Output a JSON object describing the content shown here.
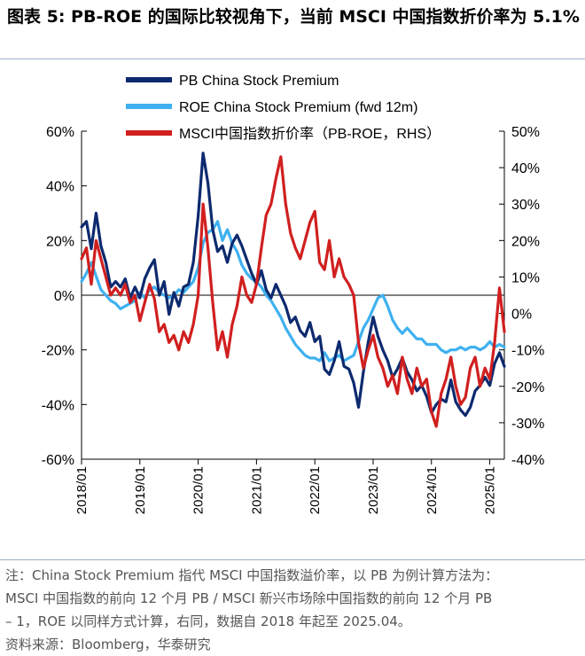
{
  "header": {
    "title": "图表 5:  PB-ROE 的国际比较视角下，当前 MSCI 中国指数折价率为 5.1%"
  },
  "footer": {
    "note_line1": "注：China Stock Premium 指代 MSCI 中国指数溢价率，以 PB 为例计算方法为：",
    "note_line2": "MSCI 中国指数的前向 12 个月 PB / MSCI 新兴市场除中国指数的前向 12 个月 PB",
    "note_line3": "– 1，ROE 以同样方式计算，右同，数据自 2018 年起至 2025.04。",
    "source": "资料来源：Bloomberg，华泰研究"
  },
  "colors": {
    "pb": "#0d2a6e",
    "roe": "#3fb1f0",
    "msci": "#d11f1f"
  },
  "chart_data": {
    "type": "line",
    "x_ticks": [
      "2018/01",
      "2019/01",
      "2020/01",
      "2021/01",
      "2022/01",
      "2023/01",
      "2024/01",
      "2025/01"
    ],
    "xlim": [
      "2018/01",
      "2025/04"
    ],
    "y_left": {
      "ylim": [
        -60,
        60
      ],
      "ticks": [
        "60%",
        "40%",
        "20%",
        "0%",
        "-20%",
        "-40%",
        "-60%"
      ]
    },
    "y_right": {
      "ylim": [
        -40,
        50
      ],
      "ticks": [
        "50%",
        "40%",
        "30%",
        "20%",
        "10%",
        "0%",
        "-10%",
        "-20%",
        "-30%",
        "-40%"
      ]
    },
    "legend": [
      "PB China Stock Premium",
      "ROE China Stock Premium (fwd 12m)",
      "MSCI中国指数折价率（PB-ROE，RHS）"
    ],
    "legend_placement": "top-center",
    "series": [
      {
        "name": "PB China Stock Premium",
        "axis": "left",
        "points": [
          [
            "2018/01",
            25
          ],
          [
            "2018/02",
            27
          ],
          [
            "2018/03",
            17
          ],
          [
            "2018/04",
            30
          ],
          [
            "2018/05",
            18
          ],
          [
            "2018/06",
            12
          ],
          [
            "2018/07",
            3
          ],
          [
            "2018/08",
            5
          ],
          [
            "2018/09",
            3
          ],
          [
            "2018/10",
            6
          ],
          [
            "2018/11",
            -1
          ],
          [
            "2018/12",
            3
          ],
          [
            "2019/01",
            -1
          ],
          [
            "2019/02",
            6
          ],
          [
            "2019/03",
            10
          ],
          [
            "2019/04",
            13
          ],
          [
            "2019/05",
            0
          ],
          [
            "2019/06",
            5
          ],
          [
            "2019/07",
            -7
          ],
          [
            "2019/08",
            1
          ],
          [
            "2019/09",
            -4
          ],
          [
            "2019/10",
            3
          ],
          [
            "2019/11",
            4
          ],
          [
            "2019/12",
            12
          ],
          [
            "2020/01",
            29
          ],
          [
            "2020/02",
            52
          ],
          [
            "2020/03",
            41
          ],
          [
            "2020/04",
            24
          ],
          [
            "2020/05",
            16
          ],
          [
            "2020/06",
            18
          ],
          [
            "2020/07",
            12
          ],
          [
            "2020/08",
            19
          ],
          [
            "2020/09",
            22
          ],
          [
            "2020/10",
            18
          ],
          [
            "2020/11",
            13
          ],
          [
            "2020/12",
            8
          ],
          [
            "2021/01",
            4
          ],
          [
            "2021/02",
            9
          ],
          [
            "2021/03",
            2
          ],
          [
            "2021/04",
            -1
          ],
          [
            "2021/05",
            4
          ],
          [
            "2021/06",
            0
          ],
          [
            "2021/07",
            -4
          ],
          [
            "2021/08",
            -10
          ],
          [
            "2021/09",
            -8
          ],
          [
            "2021/10",
            -13
          ],
          [
            "2021/11",
            -15
          ],
          [
            "2021/12",
            -10
          ],
          [
            "2022/01",
            -17
          ],
          [
            "2022/02",
            -15
          ],
          [
            "2022/03",
            -27
          ],
          [
            "2022/04",
            -29
          ],
          [
            "2022/05",
            -24
          ],
          [
            "2022/06",
            -17
          ],
          [
            "2022/07",
            -26
          ],
          [
            "2022/08",
            -27
          ],
          [
            "2022/09",
            -32
          ],
          [
            "2022/10",
            -41
          ],
          [
            "2022/11",
            -28
          ],
          [
            "2022/12",
            -17
          ],
          [
            "2023/01",
            -8
          ],
          [
            "2023/02",
            -15
          ],
          [
            "2023/03",
            -20
          ],
          [
            "2023/04",
            -24
          ],
          [
            "2023/05",
            -30
          ],
          [
            "2023/06",
            -27
          ],
          [
            "2023/07",
            -23
          ],
          [
            "2023/08",
            -28
          ],
          [
            "2023/09",
            -31
          ],
          [
            "2023/10",
            -35
          ],
          [
            "2023/11",
            -33
          ],
          [
            "2023/12",
            -37
          ],
          [
            "2024/01",
            -43
          ],
          [
            "2024/02",
            -40
          ],
          [
            "2024/03",
            -38
          ],
          [
            "2024/04",
            -39
          ],
          [
            "2024/05",
            -31
          ],
          [
            "2024/06",
            -39
          ],
          [
            "2024/07",
            -42
          ],
          [
            "2024/08",
            -44
          ],
          [
            "2024/09",
            -41
          ],
          [
            "2024/10",
            -35
          ],
          [
            "2024/11",
            -33
          ],
          [
            "2024/12",
            -30
          ],
          [
            "2025/01",
            -33
          ],
          [
            "2025/02",
            -25
          ],
          [
            "2025/03",
            -21
          ],
          [
            "2025/04",
            -26
          ]
        ]
      },
      {
        "name": "ROE China Stock Premium (fwd 12m)",
        "axis": "left",
        "points": [
          [
            "2018/01",
            5
          ],
          [
            "2018/02",
            8
          ],
          [
            "2018/03",
            12
          ],
          [
            "2018/04",
            7
          ],
          [
            "2018/05",
            2
          ],
          [
            "2018/06",
            0
          ],
          [
            "2018/07",
            -2
          ],
          [
            "2018/08",
            -3
          ],
          [
            "2018/09",
            -5
          ],
          [
            "2018/10",
            -4
          ],
          [
            "2018/11",
            -3
          ],
          [
            "2018/12",
            -2
          ],
          [
            "2019/01",
            1
          ],
          [
            "2019/02",
            -1
          ],
          [
            "2019/03",
            2
          ],
          [
            "2019/04",
            3
          ],
          [
            "2019/05",
            1
          ],
          [
            "2019/06",
            0
          ],
          [
            "2019/07",
            -1
          ],
          [
            "2019/08",
            0
          ],
          [
            "2019/09",
            2
          ],
          [
            "2019/10",
            1
          ],
          [
            "2019/11",
            3
          ],
          [
            "2019/12",
            5
          ],
          [
            "2020/01",
            10
          ],
          [
            "2020/02",
            19
          ],
          [
            "2020/03",
            23
          ],
          [
            "2020/04",
            24
          ],
          [
            "2020/05",
            27
          ],
          [
            "2020/06",
            20
          ],
          [
            "2020/07",
            24
          ],
          [
            "2020/08",
            19
          ],
          [
            "2020/09",
            16
          ],
          [
            "2020/10",
            11
          ],
          [
            "2020/11",
            8
          ],
          [
            "2020/12",
            6
          ],
          [
            "2021/01",
            5
          ],
          [
            "2021/02",
            3
          ],
          [
            "2021/03",
            0
          ],
          [
            "2021/04",
            -2
          ],
          [
            "2021/05",
            -5
          ],
          [
            "2021/06",
            -8
          ],
          [
            "2021/07",
            -12
          ],
          [
            "2021/08",
            -15
          ],
          [
            "2021/09",
            -18
          ],
          [
            "2021/10",
            -20
          ],
          [
            "2021/11",
            -22
          ],
          [
            "2021/12",
            -23
          ],
          [
            "2022/01",
            -23
          ],
          [
            "2022/02",
            -24
          ],
          [
            "2022/03",
            -21
          ],
          [
            "2022/04",
            -24
          ],
          [
            "2022/05",
            -23
          ],
          [
            "2022/06",
            -22
          ],
          [
            "2022/07",
            -24
          ],
          [
            "2022/08",
            -23
          ],
          [
            "2022/09",
            -22
          ],
          [
            "2022/10",
            -17
          ],
          [
            "2022/11",
            -12
          ],
          [
            "2022/12",
            -9
          ],
          [
            "2023/01",
            -5
          ],
          [
            "2023/02",
            -1
          ],
          [
            "2023/03",
            0
          ],
          [
            "2023/04",
            -4
          ],
          [
            "2023/05",
            -9
          ],
          [
            "2023/06",
            -12
          ],
          [
            "2023/07",
            -14
          ],
          [
            "2023/08",
            -12
          ],
          [
            "2023/09",
            -14
          ],
          [
            "2023/10",
            -16
          ],
          [
            "2023/11",
            -16
          ],
          [
            "2023/12",
            -18
          ],
          [
            "2024/01",
            -18
          ],
          [
            "2024/02",
            -18
          ],
          [
            "2024/03",
            -20
          ],
          [
            "2024/04",
            -21
          ],
          [
            "2024/05",
            -20
          ],
          [
            "2024/06",
            -20
          ],
          [
            "2024/07",
            -19
          ],
          [
            "2024/08",
            -20
          ],
          [
            "2024/09",
            -19
          ],
          [
            "2024/10",
            -19
          ],
          [
            "2024/11",
            -20
          ],
          [
            "2024/12",
            -19
          ],
          [
            "2025/01",
            -17
          ],
          [
            "2025/02",
            -19
          ],
          [
            "2025/03",
            -18
          ],
          [
            "2025/04",
            -19
          ]
        ]
      },
      {
        "name": "MSCI中国指数折价率（PB-ROE，RHS）",
        "axis": "right",
        "points": [
          [
            "2018/01",
            15
          ],
          [
            "2018/02",
            18
          ],
          [
            "2018/03",
            8
          ],
          [
            "2018/04",
            20
          ],
          [
            "2018/05",
            15
          ],
          [
            "2018/06",
            10
          ],
          [
            "2018/07",
            5
          ],
          [
            "2018/08",
            7
          ],
          [
            "2018/09",
            5
          ],
          [
            "2018/10",
            8
          ],
          [
            "2018/11",
            3
          ],
          [
            "2018/12",
            5
          ],
          [
            "2019/01",
            -2
          ],
          [
            "2019/02",
            3
          ],
          [
            "2019/03",
            8
          ],
          [
            "2019/04",
            4
          ],
          [
            "2019/05",
            -5
          ],
          [
            "2019/06",
            -3
          ],
          [
            "2019/07",
            -8
          ],
          [
            "2019/08",
            -6
          ],
          [
            "2019/09",
            -10
          ],
          [
            "2019/10",
            -5
          ],
          [
            "2019/11",
            -8
          ],
          [
            "2019/12",
            -3
          ],
          [
            "2020/01",
            5
          ],
          [
            "2020/02",
            30
          ],
          [
            "2020/03",
            18
          ],
          [
            "2020/04",
            3
          ],
          [
            "2020/05",
            -10
          ],
          [
            "2020/06",
            -5
          ],
          [
            "2020/07",
            -12
          ],
          [
            "2020/08",
            -3
          ],
          [
            "2020/09",
            2
          ],
          [
            "2020/10",
            10
          ],
          [
            "2020/11",
            5
          ],
          [
            "2020/12",
            3
          ],
          [
            "2021/01",
            8
          ],
          [
            "2021/02",
            18
          ],
          [
            "2021/03",
            27
          ],
          [
            "2021/04",
            30
          ],
          [
            "2021/05",
            37
          ],
          [
            "2021/06",
            43
          ],
          [
            "2021/07",
            30
          ],
          [
            "2021/08",
            22
          ],
          [
            "2021/09",
            18
          ],
          [
            "2021/10",
            15
          ],
          [
            "2021/11",
            20
          ],
          [
            "2021/12",
            25
          ],
          [
            "2022/01",
            28
          ],
          [
            "2022/02",
            14
          ],
          [
            "2022/03",
            12
          ],
          [
            "2022/04",
            20
          ],
          [
            "2022/05",
            10
          ],
          [
            "2022/06",
            15
          ],
          [
            "2022/07",
            10
          ],
          [
            "2022/08",
            8
          ],
          [
            "2022/09",
            5
          ],
          [
            "2022/10",
            -8
          ],
          [
            "2022/11",
            -15
          ],
          [
            "2022/12",
            -10
          ],
          [
            "2023/01",
            -6
          ],
          [
            "2023/02",
            -12
          ],
          [
            "2023/03",
            -15
          ],
          [
            "2023/04",
            -20
          ],
          [
            "2023/05",
            -17
          ],
          [
            "2023/06",
            -22
          ],
          [
            "2023/07",
            -12
          ],
          [
            "2023/08",
            -18
          ],
          [
            "2023/09",
            -22
          ],
          [
            "2023/10",
            -15
          ],
          [
            "2023/11",
            -20
          ],
          [
            "2023/12",
            -18
          ],
          [
            "2024/01",
            -27
          ],
          [
            "2024/02",
            -31
          ],
          [
            "2024/03",
            -22
          ],
          [
            "2024/04",
            -18
          ],
          [
            "2024/05",
            -12
          ],
          [
            "2024/06",
            -20
          ],
          [
            "2024/07",
            -25
          ],
          [
            "2024/08",
            -23
          ],
          [
            "2024/09",
            -15
          ],
          [
            "2024/10",
            -12
          ],
          [
            "2024/11",
            -20
          ],
          [
            "2024/12",
            -15
          ],
          [
            "2025/01",
            -18
          ],
          [
            "2025/02",
            -8
          ],
          [
            "2025/03",
            7
          ],
          [
            "2025/04",
            -5
          ]
        ]
      }
    ]
  }
}
